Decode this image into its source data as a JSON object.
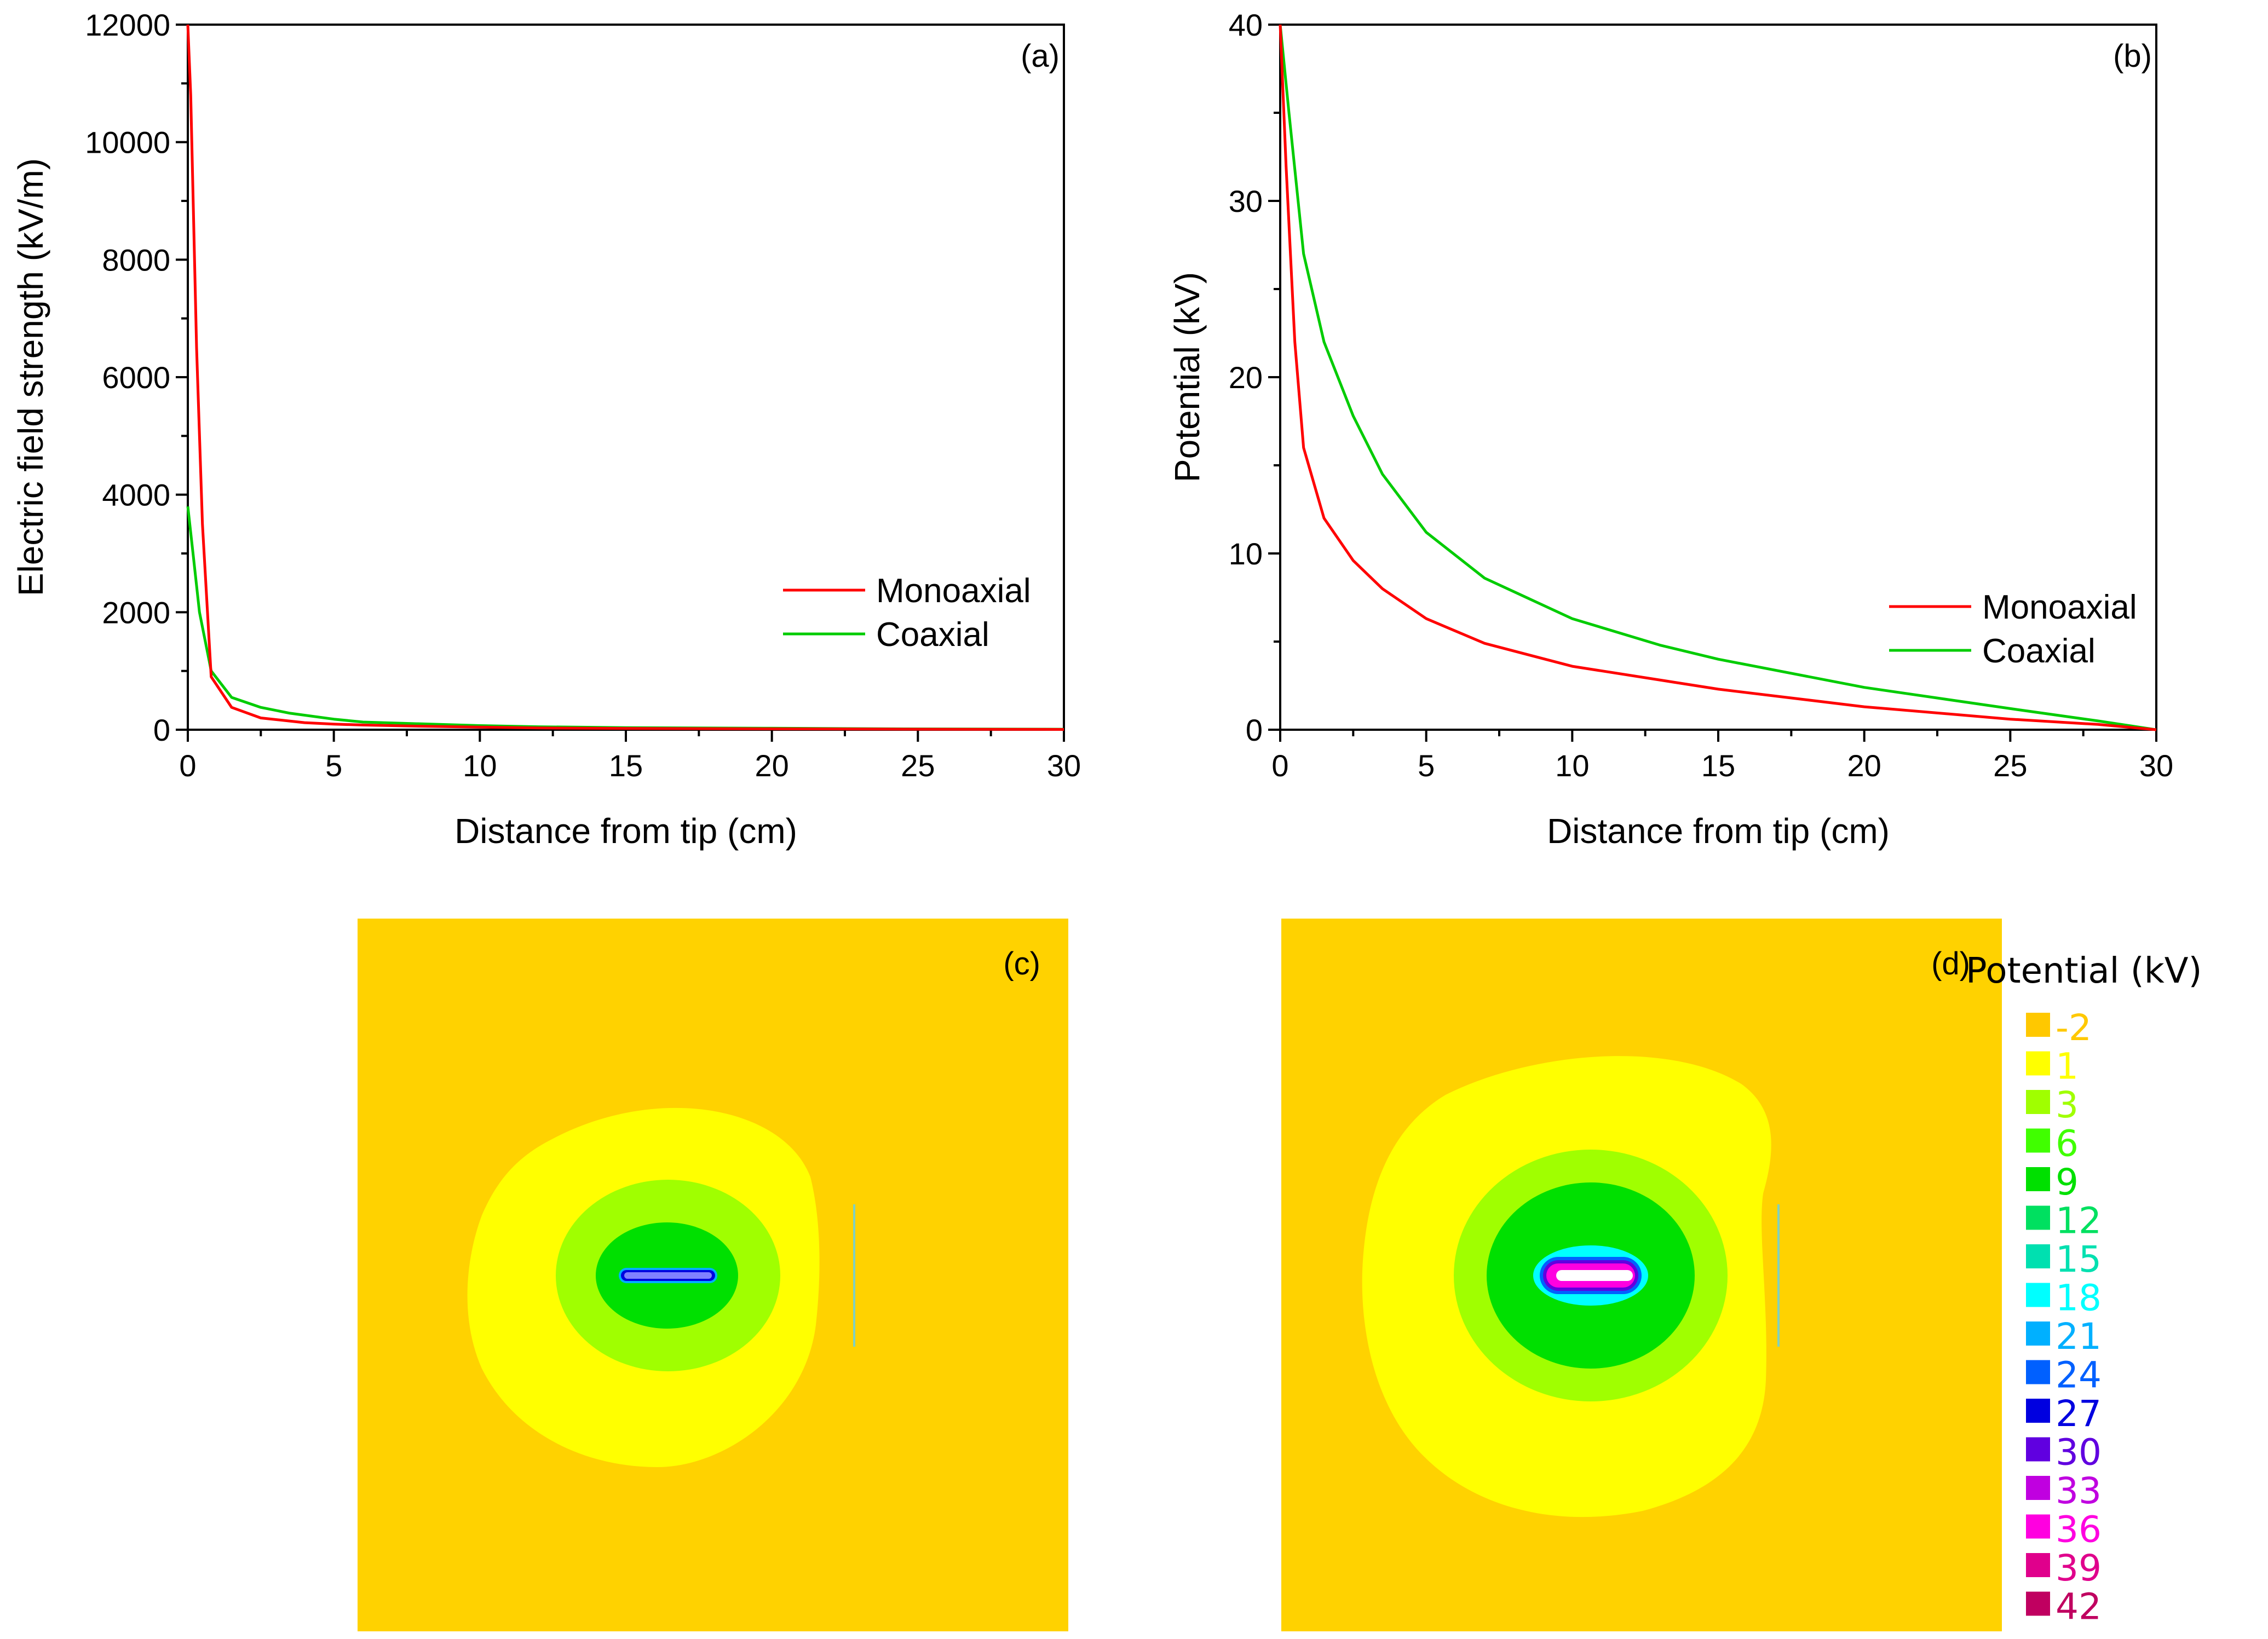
{
  "colors": {
    "monoaxial": "#ff0000",
    "coaxial": "#00cc00",
    "map_background": "#ffd200"
  },
  "chart_data": [
    {
      "id": "a",
      "type": "line",
      "panel_label": "(a)",
      "xlabel": "Distance from tip (cm)",
      "ylabel": "Electric field strength (kV/m)",
      "xlim": [
        0,
        30
      ],
      "ylim": [
        0,
        12000
      ],
      "xticks": [
        "0",
        "5",
        "10",
        "15",
        "20",
        "25",
        "30"
      ],
      "yticks": [
        "0",
        "2000",
        "4000",
        "6000",
        "8000",
        "10000",
        "12000"
      ],
      "legend_position": "center-right",
      "series": [
        {
          "name": "Monoaxial",
          "color": "#ff0000",
          "points": [
            [
              0,
              12000
            ],
            [
              0.1,
              10800
            ],
            [
              0.3,
              6500
            ],
            [
              0.5,
              3500
            ],
            [
              0.8,
              900
            ],
            [
              1.5,
              380
            ],
            [
              2.5,
              200
            ],
            [
              4,
              120
            ],
            [
              5,
              95
            ],
            [
              6,
              80
            ],
            [
              8,
              60
            ],
            [
              10,
              45
            ],
            [
              12,
              30
            ],
            [
              15,
              22
            ],
            [
              20,
              15
            ],
            [
              24,
              10
            ],
            [
              30,
              5
            ]
          ]
        },
        {
          "name": "Coaxial",
          "color": "#00cc00",
          "points": [
            [
              0,
              3800
            ],
            [
              0.2,
              2900
            ],
            [
              0.4,
              2000
            ],
            [
              0.8,
              1000
            ],
            [
              1.5,
              550
            ],
            [
              2.5,
              380
            ],
            [
              3.5,
              280
            ],
            [
              5,
              180
            ],
            [
              6,
              130
            ],
            [
              8,
              100
            ],
            [
              10,
              70
            ],
            [
              12,
              50
            ],
            [
              15,
              35
            ],
            [
              20,
              25
            ],
            [
              24,
              15
            ],
            [
              30,
              8
            ]
          ]
        }
      ]
    },
    {
      "id": "b",
      "type": "line",
      "panel_label": "(b)",
      "xlabel": "Distance from tip (cm)",
      "ylabel": "Potential (kV)",
      "xlim": [
        0,
        30
      ],
      "ylim": [
        0,
        40
      ],
      "xticks": [
        "0",
        "5",
        "10",
        "15",
        "20",
        "25",
        "30"
      ],
      "yticks": [
        "0",
        "10",
        "20",
        "30",
        "40"
      ],
      "legend_position": "center-right",
      "series": [
        {
          "name": "Monoaxial",
          "color": "#ff0000",
          "points": [
            [
              0,
              40
            ],
            [
              0.2,
              32
            ],
            [
              0.5,
              22
            ],
            [
              0.8,
              16
            ],
            [
              1.5,
              12
            ],
            [
              2.5,
              9.6
            ],
            [
              3.5,
              8
            ],
            [
              5,
              6.3
            ],
            [
              7,
              4.9
            ],
            [
              10,
              3.6
            ],
            [
              15,
              2.3
            ],
            [
              20,
              1.3
            ],
            [
              25,
              0.6
            ],
            [
              28,
              0.3
            ],
            [
              30,
              0
            ]
          ]
        },
        {
          "name": "Coaxial",
          "color": "#00cc00",
          "points": [
            [
              0,
              40
            ],
            [
              0.3,
              35
            ],
            [
              0.8,
              27
            ],
            [
              1.5,
              22
            ],
            [
              2.5,
              17.8
            ],
            [
              3.5,
              14.5
            ],
            [
              5,
              11.2
            ],
            [
              7,
              8.6
            ],
            [
              10,
              6.3
            ],
            [
              13,
              4.8
            ],
            [
              15,
              4
            ],
            [
              20,
              2.4
            ],
            [
              25,
              1.2
            ],
            [
              28,
              0.5
            ],
            [
              30,
              0
            ]
          ]
        }
      ]
    }
  ],
  "maps": {
    "c": {
      "panel_label": "(c)"
    },
    "d": {
      "panel_label": "(d)"
    }
  },
  "colorbar": {
    "title": "Potential (kV)",
    "entries": [
      {
        "label": "-2",
        "color": "#ffc800"
      },
      {
        "label": "1",
        "color": "#ffff00"
      },
      {
        "label": "3",
        "color": "#a0ff00"
      },
      {
        "label": "6",
        "color": "#40ff00"
      },
      {
        "label": "9",
        "color": "#00e000"
      },
      {
        "label": "12",
        "color": "#00e060"
      },
      {
        "label": "15",
        "color": "#00e0b0"
      },
      {
        "label": "18",
        "color": "#00ffff"
      },
      {
        "label": "21",
        "color": "#00b0ff"
      },
      {
        "label": "24",
        "color": "#0060ff"
      },
      {
        "label": "27",
        "color": "#0000e0"
      },
      {
        "label": "30",
        "color": "#6000e0"
      },
      {
        "label": "33",
        "color": "#c000e0"
      },
      {
        "label": "36",
        "color": "#ff00e0"
      },
      {
        "label": "39",
        "color": "#e0008c"
      },
      {
        "label": "42",
        "color": "#c00060"
      }
    ]
  }
}
